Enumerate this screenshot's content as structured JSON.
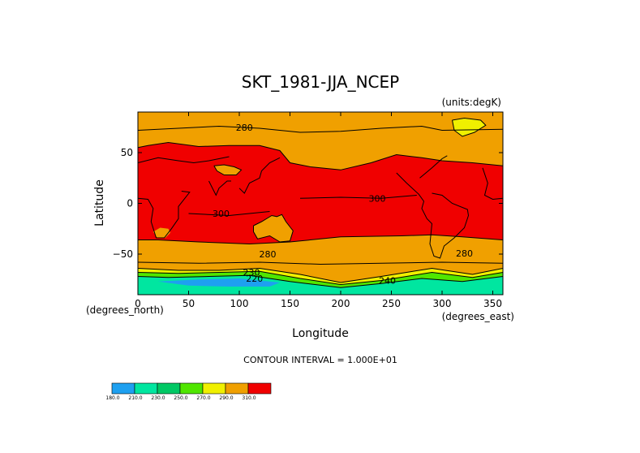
{
  "chart_data": {
    "type": "heatmap",
    "title": "SKT_1981-JJA_NCEP",
    "units_label": "(units:degK)",
    "xlabel": "Longitude",
    "ylabel": "Latitude",
    "x_unit_label": "(degrees_east)",
    "y_unit_label": "(degrees_north)",
    "xlim": [
      0,
      360
    ],
    "ylim": [
      -90,
      90
    ],
    "x_ticks": [
      {
        "value": 0,
        "label": "0"
      },
      {
        "value": 50,
        "label": "50"
      },
      {
        "value": 100,
        "label": "100"
      },
      {
        "value": 150,
        "label": "150"
      },
      {
        "value": 200,
        "label": "200"
      },
      {
        "value": 250,
        "label": "250"
      },
      {
        "value": 300,
        "label": "300"
      },
      {
        "value": 350,
        "label": "350"
      }
    ],
    "y_ticks": [
      {
        "value": 50,
        "label": "50"
      },
      {
        "value": 0,
        "label": "0"
      },
      {
        "value": -50,
        "label": "−50"
      }
    ],
    "contour_interval_text": "CONTOUR INTERVAL = 1.000E+01",
    "contour_labels": [
      {
        "text": "280",
        "lon": 105,
        "lat": 75
      },
      {
        "text": "300",
        "lon": 236,
        "lat": 5
      },
      {
        "text": "300",
        "lon": 82,
        "lat": -10
      },
      {
        "text": "280",
        "lon": 128,
        "lat": -50
      },
      {
        "text": "280",
        "lon": 322,
        "lat": -49
      },
      {
        "text": "230",
        "lon": 112,
        "lat": -68
      },
      {
        "text": "220",
        "lon": 115,
        "lat": -74
      },
      {
        "text": "240",
        "lon": 246,
        "lat": -76
      }
    ],
    "colorbar": {
      "bins": [
        {
          "color": "#1ea0f0"
        },
        {
          "color": "#00e6a0"
        },
        {
          "color": "#00c864"
        },
        {
          "color": "#50e600"
        },
        {
          "color": "#f0f000"
        },
        {
          "color": "#f0a000"
        },
        {
          "color": "#f00000"
        }
      ],
      "labels": [
        "180.0",
        "210.0",
        "230.0",
        "250.0",
        "270.0",
        "290.0",
        "310.0"
      ]
    },
    "regions": [
      {
        "name": "background",
        "color": "#f0a000"
      },
      {
        "name": "tropical-warm-band",
        "color": "#f00000"
      },
      {
        "name": "greenland-ice",
        "color": "#f0f000"
      },
      {
        "name": "antarctic-coast",
        "color": "#f0f000"
      },
      {
        "name": "antarctic-margin",
        "color": "#50e600"
      },
      {
        "name": "antarctic-interior",
        "color": "#00e6a0"
      },
      {
        "name": "antarctic-coldest",
        "color": "#1ea0f0"
      },
      {
        "name": "australia",
        "color": "#f0a000"
      },
      {
        "name": "tibet",
        "color": "#f0a000"
      },
      {
        "name": "andes",
        "color": "#f0a000"
      },
      {
        "name": "south-africa",
        "color": "#f0a000"
      }
    ]
  }
}
